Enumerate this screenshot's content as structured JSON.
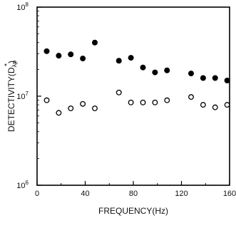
{
  "chart_data": {
    "type": "scatter",
    "title": "",
    "xlabel": "FREQUENCY(Hz)",
    "ylabel": "DETECTIVITY(D",
    "ylabel_sub": "λp",
    "ylabel_sup": "*",
    "ylabel_close": ")",
    "xlim": [
      0,
      160
    ],
    "ylim": [
      1000000,
      100000000
    ],
    "yscale": "log",
    "grid": false,
    "x_ticks": [
      {
        "value": 0,
        "label": "0"
      },
      {
        "value": 40,
        "label": "40"
      },
      {
        "value": 80,
        "label": "80"
      },
      {
        "value": 120,
        "label": "120"
      },
      {
        "value": 160,
        "label": "160"
      }
    ],
    "y_ticks": [
      {
        "value": 1000000,
        "base": "10",
        "exp": "6"
      },
      {
        "value": 10000000,
        "base": "10",
        "exp": "7"
      },
      {
        "value": 100000000,
        "base": "10",
        "exp": "8"
      }
    ],
    "series": [
      {
        "marker": "filled-circle",
        "color": "#000000",
        "points": [
          {
            "x": 8,
            "y": 32000000
          },
          {
            "x": 18,
            "y": 28500000
          },
          {
            "x": 28,
            "y": 29500000
          },
          {
            "x": 38,
            "y": 26500000
          },
          {
            "x": 48,
            "y": 40000000
          },
          {
            "x": 68,
            "y": 25000000
          },
          {
            "x": 78,
            "y": 27000000
          },
          {
            "x": 88,
            "y": 21000000
          },
          {
            "x": 98,
            "y": 18500000
          },
          {
            "x": 108,
            "y": 19500000
          },
          {
            "x": 128,
            "y": 18000000
          },
          {
            "x": 138,
            "y": 16000000
          },
          {
            "x": 148,
            "y": 16000000
          },
          {
            "x": 158,
            "y": 15000000
          }
        ]
      },
      {
        "marker": "open-circle",
        "color": "#000000",
        "points": [
          {
            "x": 8,
            "y": 9000000
          },
          {
            "x": 18,
            "y": 6500000
          },
          {
            "x": 28,
            "y": 7300000
          },
          {
            "x": 38,
            "y": 8200000
          },
          {
            "x": 48,
            "y": 7300000
          },
          {
            "x": 68,
            "y": 11000000
          },
          {
            "x": 78,
            "y": 8500000
          },
          {
            "x": 88,
            "y": 8500000
          },
          {
            "x": 98,
            "y": 8500000
          },
          {
            "x": 108,
            "y": 9000000
          },
          {
            "x": 128,
            "y": 9800000
          },
          {
            "x": 138,
            "y": 8000000
          },
          {
            "x": 148,
            "y": 7500000
          },
          {
            "x": 158,
            "y": 8000000
          }
        ]
      }
    ]
  }
}
